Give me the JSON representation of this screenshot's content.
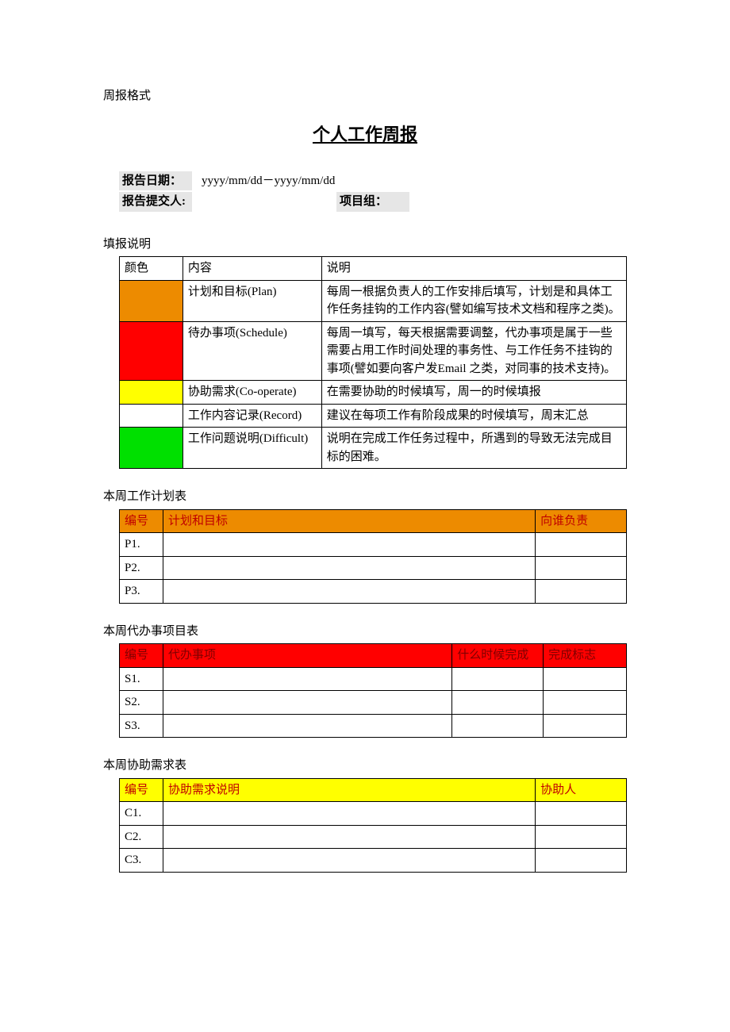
{
  "top_label": "周报格式",
  "main_title": "个人工作周报",
  "meta": {
    "date_label": "报告日期：",
    "date_value": "yyyy/mm/dd－yyyy/mm/dd",
    "submitter_label": "报告提交人:",
    "submitter_value": "",
    "group_label": "项目组：",
    "group_value": ""
  },
  "legend": {
    "section_label": "填报说明",
    "header": {
      "color": "颜色",
      "content": "内容",
      "desc": "说明"
    },
    "rows": [
      {
        "color": "#ed8b00",
        "content": "计划和目标(Plan)",
        "desc": "每周一根据负责人的工作安排后填写，计划是和具体工作任务挂钩的工作内容(譬如编写技术文档和程序之类)。"
      },
      {
        "color": "#ff0000",
        "content": "待办事项(Schedule)",
        "desc": "每周一填写，每天根据需要调整，代办事项是属于一些需要占用工作时间处理的事务性、与工作任务不挂钩的事项(譬如要向客户发Email 之类，对同事的技术支持)。"
      },
      {
        "color": "#ffff00",
        "content": "协助需求(Co-operate)",
        "desc": "在需要协助的时候填写，周一的时候填报"
      },
      {
        "color": "#ffffff",
        "content": "工作内容记录(Record)",
        "desc": "建议在每项工作有阶段成果的时候填写，周末汇总"
      },
      {
        "color": "#00e000",
        "content": "工作问题说明(Difficult)",
        "desc": "说明在完成工作任务过程中，所遇到的导致无法完成目标的困难。"
      }
    ]
  },
  "plan": {
    "section_label": "本周工作计划表",
    "header_bg": "#ed8b00",
    "header_fg": "#c00000",
    "header": {
      "id": "编号",
      "main": "计划和目标",
      "right": "向谁负责"
    },
    "rows": [
      {
        "id": "P1.",
        "main": "",
        "right": ""
      },
      {
        "id": "P2.",
        "main": "",
        "right": ""
      },
      {
        "id": "P3.",
        "main": "",
        "right": ""
      }
    ]
  },
  "schedule": {
    "section_label": "本周代办事项目表",
    "header_bg": "#ff0000",
    "header_fg": "#800000",
    "header": {
      "id": "编号",
      "main": "代办事项",
      "when": "什么时候完成",
      "done": "完成标志"
    },
    "rows": [
      {
        "id": "S1.",
        "main": "",
        "when": "",
        "done": ""
      },
      {
        "id": "S2.",
        "main": "",
        "when": "",
        "done": ""
      },
      {
        "id": "S3.",
        "main": "",
        "when": "",
        "done": ""
      }
    ]
  },
  "cooperate": {
    "section_label": "本周协助需求表",
    "header_bg": "#ffff00",
    "header_fg": "#c00000",
    "header": {
      "id": "编号",
      "main": "协助需求说明",
      "right": "协助人"
    },
    "rows": [
      {
        "id": "C1.",
        "main": "",
        "right": ""
      },
      {
        "id": "C2.",
        "main": "",
        "right": ""
      },
      {
        "id": "C3.",
        "main": "",
        "right": ""
      }
    ]
  }
}
